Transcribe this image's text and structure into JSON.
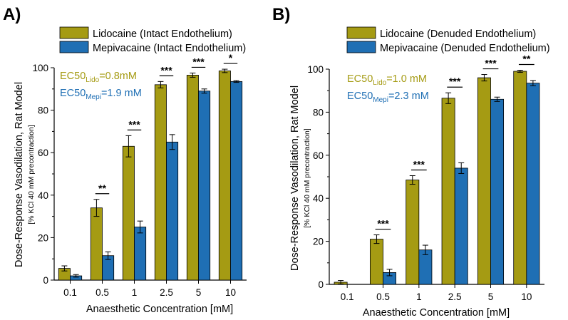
{
  "colors": {
    "lido": "#a59b13",
    "mepi": "#1f6fb4",
    "axis": "#000000"
  },
  "chart_data": [
    {
      "type": "bar",
      "panel_label": "A)",
      "categories": [
        "0.1",
        "0.5",
        "1",
        "2.5",
        "5",
        "10"
      ],
      "series": [
        {
          "name": "Lidocaine (Intact Endothelium)",
          "values": [
            5.5,
            34,
            63,
            92,
            96.5,
            98.5
          ],
          "errors": [
            1.2,
            4,
            5,
            1.5,
            1,
            0.8
          ]
        },
        {
          "name": "Mepivacaine (Intact Endothelium)",
          "values": [
            2,
            11.5,
            25,
            65,
            89,
            93.5
          ],
          "errors": [
            0.6,
            1.8,
            2.8,
            3.5,
            1,
            0.4
          ]
        }
      ],
      "significance": [
        "",
        "**",
        "***",
        "***",
        "***",
        "*"
      ],
      "ec50": [
        {
          "prefix": "EC50",
          "sub": "Lido",
          "suffix": "=0.8mM"
        },
        {
          "prefix": "EC50",
          "sub": "Mepi",
          "suffix": "=1.9 mM"
        }
      ],
      "ylim": [
        0,
        100
      ],
      "yticks": [
        0,
        20,
        40,
        60,
        80,
        100
      ],
      "ylabel": "Dose-Response Vasodilation, Rat Model",
      "ylabel2": "[% KCl 40 mM precontraction]",
      "xlabel": "Anaesthetic Concentration [mM]",
      "legend": "top"
    },
    {
      "type": "bar",
      "panel_label": "B)",
      "categories": [
        "0.1",
        "0.5",
        "1",
        "2.5",
        "5",
        "10"
      ],
      "series": [
        {
          "name": "Lidocaine (Denuded Endothelium)",
          "values": [
            1,
            21,
            48.5,
            86.5,
            96,
            99
          ],
          "errors": [
            0.8,
            2,
            2,
            2.5,
            1.5,
            0.5
          ]
        },
        {
          "name": "Mepivacaine (Denuded Endothelium)",
          "values": [
            0,
            5.5,
            16,
            54,
            86,
            93.5
          ],
          "errors": [
            0,
            1.5,
            2.2,
            2.5,
            1,
            1.2
          ]
        }
      ],
      "significance": [
        "",
        "***",
        "***",
        "***",
        "***",
        "**"
      ],
      "ec50": [
        {
          "prefix": "EC50",
          "sub": "Lido",
          "suffix": "=1.0 mM"
        },
        {
          "prefix": "EC50",
          "sub": "Mepi",
          "suffix": "=2.3 mM"
        }
      ],
      "ylim": [
        0,
        100
      ],
      "yticks": [
        0,
        20,
        40,
        60,
        80,
        100
      ],
      "ylabel": "Dose-Response Vasodilation, Rat Model",
      "ylabel2": "[% KCl 40 mM precontraction]",
      "xlabel": "Anaesthetic Concentration [mM]",
      "legend": "top"
    }
  ]
}
